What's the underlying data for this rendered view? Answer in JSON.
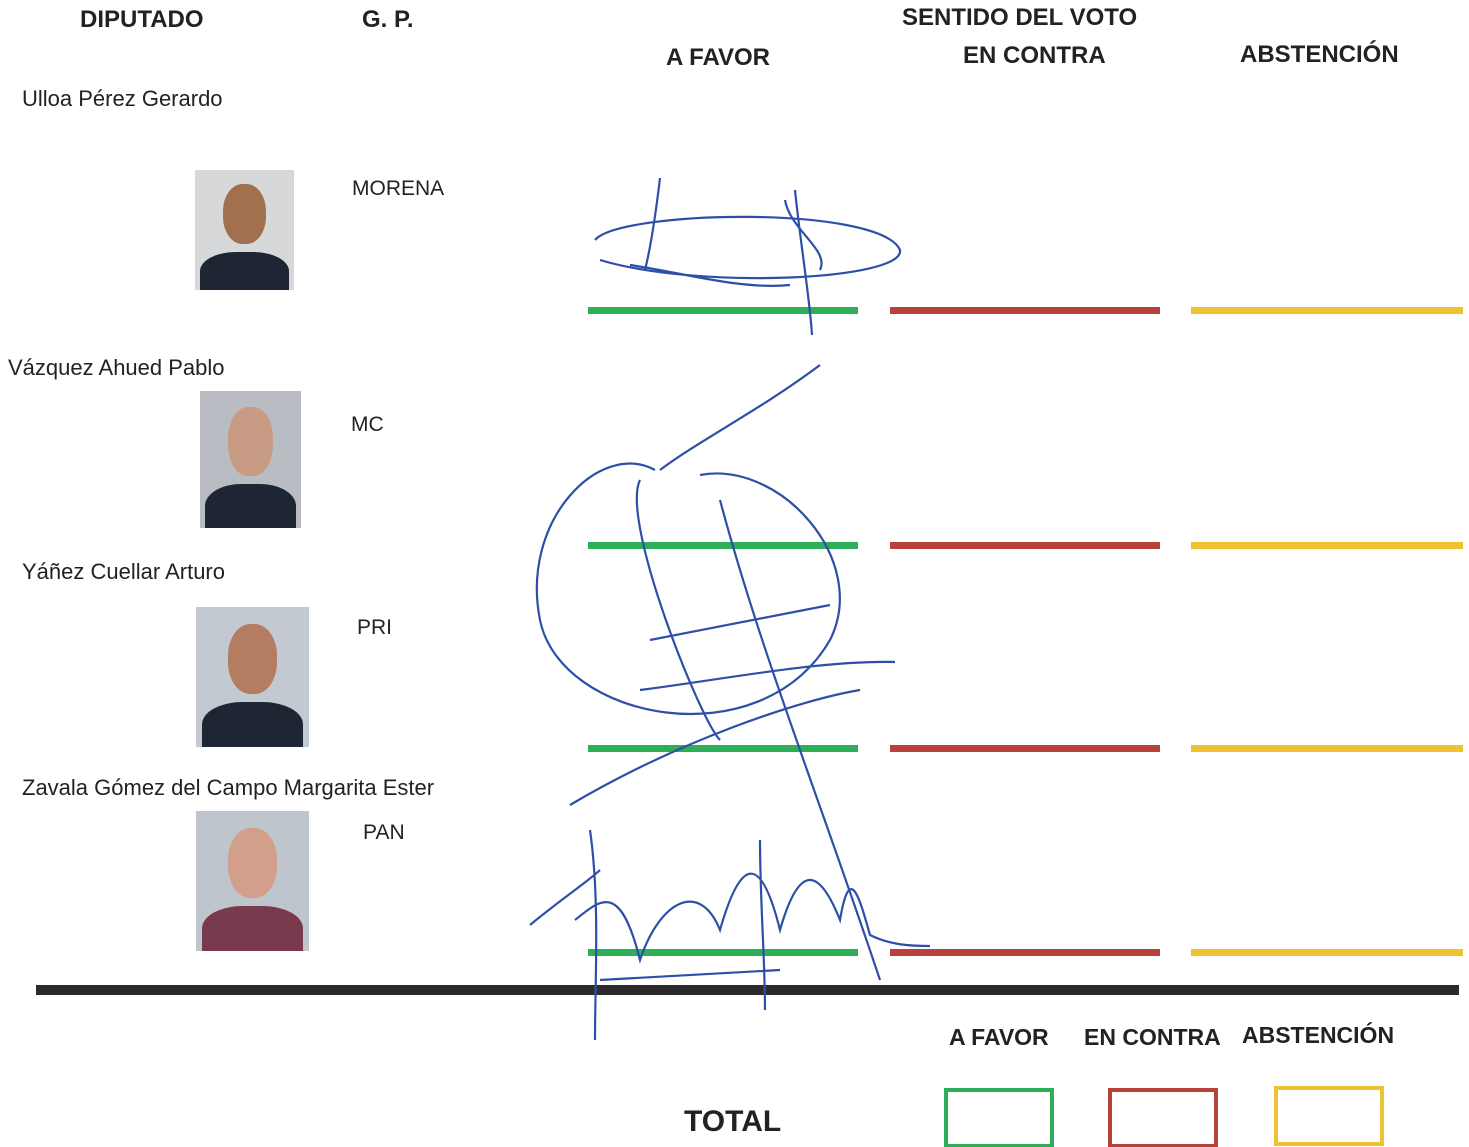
{
  "header": {
    "deputy": "DIPUTADO",
    "group": "G. P.",
    "vote_title": "SENTIDO DEL VOTO",
    "in_favor": "A FAVOR",
    "against": "EN CONTRA",
    "abstention": "ABSTENCIÓN"
  },
  "rows": [
    {
      "name": "Ulloa Pérez Gerardo",
      "party": "MORENA"
    },
    {
      "name": "Vázquez Ahued Pablo",
      "party": "MC"
    },
    {
      "name": "Yáñez Cuellar Arturo",
      "party": "PRI"
    },
    {
      "name": "Zavala Gómez del Campo Margarita Ester",
      "party": "PAN"
    }
  ],
  "totals": {
    "label": "TOTAL",
    "in_favor": "A FAVOR",
    "against": "EN CONTRA",
    "abstention": "ABSTENCIÓN"
  }
}
